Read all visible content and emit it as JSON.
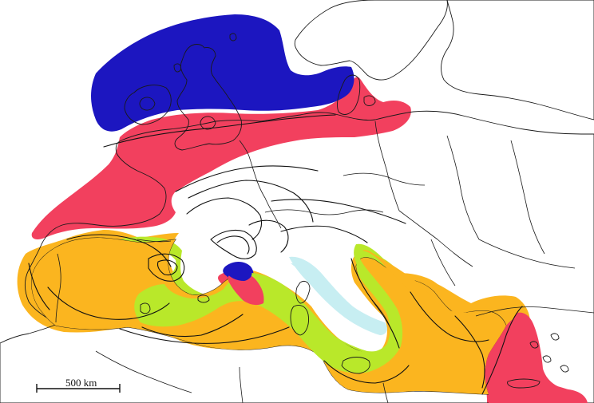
{
  "scale_bar": {
    "label": "500 km"
  },
  "zones": [
    {
      "id": "blue",
      "color": "#1c16c0"
    },
    {
      "id": "red",
      "color": "#f2405e"
    },
    {
      "id": "orange",
      "color": "#fbb51f"
    },
    {
      "id": "green",
      "color": "#b9e82a"
    },
    {
      "id": "light-blue",
      "color": "#c7eef2"
    }
  ],
  "map": {
    "background": "#ffffff",
    "line_color": "#1a1a1a"
  }
}
